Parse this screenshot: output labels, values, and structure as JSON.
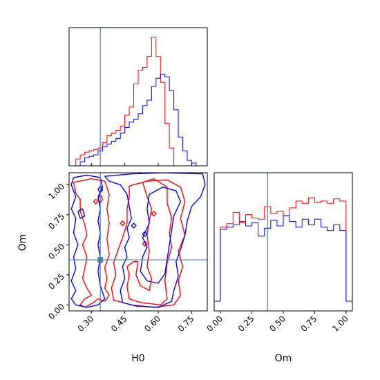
{
  "chart_data": {
    "type": "corner",
    "parameters": [
      "H0",
      "Om"
    ],
    "truth": {
      "H0": 0.34,
      "Om": 0.375
    },
    "truth_color": "#4682b4",
    "series": [
      {
        "color": "#ff0000"
      },
      {
        "color": "#0000ff"
      }
    ],
    "hist_H0": {
      "xlim": [
        0.2,
        0.82
      ],
      "edges": [
        0.23,
        0.25,
        0.27,
        0.29,
        0.31,
        0.33,
        0.35,
        0.37,
        0.39,
        0.41,
        0.43,
        0.45,
        0.47,
        0.49,
        0.51,
        0.53,
        0.55,
        0.57,
        0.59,
        0.61,
        0.63,
        0.65,
        0.67,
        0.69,
        0.71,
        0.73,
        0.75,
        0.77,
        0.79,
        0.81
      ],
      "red": [
        0.05,
        0.08,
        0.1,
        0.11,
        0.12,
        0.13,
        0.17,
        0.22,
        0.24,
        0.26,
        0.29,
        0.37,
        0.43,
        0.6,
        0.7,
        0.72,
        0.8,
        0.94,
        0.8,
        0.61,
        0.31,
        0.13,
        0.0,
        0.0,
        0.0,
        0.0,
        0.0,
        0.0,
        0.0
      ],
      "blue": [
        0.0,
        0.03,
        0.06,
        0.07,
        0.08,
        0.11,
        0.14,
        0.16,
        0.18,
        0.2,
        0.24,
        0.28,
        0.32,
        0.34,
        0.38,
        0.44,
        0.48,
        0.58,
        0.64,
        0.67,
        0.65,
        0.55,
        0.41,
        0.21,
        0.11,
        0.04,
        0.02,
        0.0,
        0.0
      ]
    },
    "hist_Om": {
      "xlim": [
        -0.05,
        1.05
      ],
      "edges": [
        0.0,
        0.05,
        0.1,
        0.15,
        0.2,
        0.25,
        0.3,
        0.35,
        0.4,
        0.45,
        0.5,
        0.55,
        0.6,
        0.65,
        0.7,
        0.75,
        0.8,
        0.85,
        0.9,
        0.95,
        1.0
      ],
      "red": [
        0.74,
        0.77,
        0.87,
        0.79,
        0.85,
        0.82,
        0.81,
        0.92,
        0.86,
        0.88,
        0.84,
        0.91,
        0.97,
        0.95,
        1.0,
        0.96,
        0.97,
        0.95,
        0.99,
        0.97
      ],
      "blue": [
        0.72,
        0.74,
        0.76,
        0.78,
        0.75,
        0.78,
        0.66,
        0.73,
        0.8,
        0.75,
        0.84,
        0.79,
        0.74,
        0.81,
        0.76,
        0.81,
        0.74,
        0.71,
        0.76,
        0.71
      ]
    },
    "scatter": {
      "xlim": [
        0.2,
        0.82
      ],
      "ylim": [
        -0.05,
        1.1
      ],
      "contours": [
        {
          "color": "red",
          "points": [
            [
              0.22,
              1.02
            ],
            [
              0.23,
              0.93
            ],
            [
              0.25,
              0.88
            ],
            [
              0.25,
              0.78
            ],
            [
              0.27,
              0.67
            ],
            [
              0.28,
              0.58
            ],
            [
              0.26,
              0.5
            ],
            [
              0.28,
              0.4
            ],
            [
              0.27,
              0.3
            ],
            [
              0.26,
              0.22
            ],
            [
              0.28,
              0.14
            ],
            [
              0.3,
              0.08
            ],
            [
              0.27,
              0.05
            ],
            [
              0.25,
              0.0
            ],
            [
              0.27,
              -0.02
            ],
            [
              0.31,
              0.02
            ],
            [
              0.33,
              0.05
            ],
            [
              0.36,
              0.03
            ],
            [
              0.38,
              0.08
            ],
            [
              0.36,
              0.14
            ],
            [
              0.37,
              0.22
            ],
            [
              0.36,
              0.31
            ],
            [
              0.38,
              0.42
            ],
            [
              0.37,
              0.55
            ],
            [
              0.38,
              0.68
            ],
            [
              0.37,
              0.8
            ],
            [
              0.38,
              0.92
            ],
            [
              0.36,
              1.03
            ],
            [
              0.3,
              1.05
            ],
            [
              0.22,
              1.02
            ]
          ]
        },
        {
          "color": "red",
          "points": [
            [
              0.32,
              0.88
            ],
            [
              0.33,
              0.86
            ],
            [
              0.32,
              0.84
            ],
            [
              0.31,
              0.86
            ],
            [
              0.32,
              0.88
            ]
          ]
        },
        {
          "color": "red",
          "points": [
            [
              0.34,
              0.92
            ],
            [
              0.35,
              0.88
            ],
            [
              0.34,
              0.85
            ],
            [
              0.33,
              0.88
            ],
            [
              0.34,
              0.92
            ]
          ]
        },
        {
          "color": "red",
          "points": [
            [
              0.44,
              0.7
            ],
            [
              0.45,
              0.68
            ],
            [
              0.44,
              0.66
            ],
            [
              0.43,
              0.68
            ],
            [
              0.44,
              0.7
            ]
          ]
        },
        {
          "color": "red",
          "points": [
            [
              0.51,
              0.36
            ],
            [
              0.5,
              0.25
            ],
            [
              0.52,
              0.16
            ],
            [
              0.56,
              0.12
            ],
            [
              0.57,
              0.22
            ],
            [
              0.55,
              0.32
            ],
            [
              0.56,
              0.45
            ],
            [
              0.55,
              0.58
            ],
            [
              0.56,
              0.7
            ],
            [
              0.57,
              0.8
            ],
            [
              0.55,
              0.9
            ],
            [
              0.53,
              1.02
            ],
            [
              0.58,
              1.05
            ],
            [
              0.64,
              0.98
            ],
            [
              0.64,
              0.85
            ],
            [
              0.66,
              0.72
            ],
            [
              0.65,
              0.6
            ],
            [
              0.66,
              0.48
            ],
            [
              0.64,
              0.35
            ],
            [
              0.63,
              0.2
            ],
            [
              0.64,
              0.05
            ],
            [
              0.61,
              0.0
            ],
            [
              0.52,
              0.02
            ],
            [
              0.47,
              0.05
            ],
            [
              0.46,
              0.15
            ],
            [
              0.47,
              0.25
            ],
            [
              0.46,
              0.32
            ],
            [
              0.49,
              0.36
            ],
            [
              0.51,
              0.36
            ]
          ]
        },
        {
          "color": "red",
          "points": [
            [
              0.47,
              0.99
            ],
            [
              0.55,
              1.03
            ],
            [
              0.64,
              1.04
            ],
            [
              0.7,
              0.98
            ],
            [
              0.72,
              0.86
            ],
            [
              0.7,
              0.72
            ],
            [
              0.72,
              0.58
            ],
            [
              0.69,
              0.45
            ],
            [
              0.71,
              0.32
            ],
            [
              0.69,
              0.2
            ],
            [
              0.7,
              0.08
            ],
            [
              0.67,
              0.0
            ],
            [
              0.58,
              -0.02
            ],
            [
              0.48,
              0.0
            ],
            [
              0.4,
              0.04
            ],
            [
              0.39,
              0.14
            ],
            [
              0.41,
              0.25
            ],
            [
              0.4,
              0.35
            ],
            [
              0.42,
              0.46
            ],
            [
              0.44,
              0.56
            ],
            [
              0.46,
              0.68
            ],
            [
              0.46,
              0.8
            ],
            [
              0.47,
              0.9
            ],
            [
              0.47,
              0.99
            ]
          ]
        },
        {
          "color": "red",
          "points": [
            [
              0.54,
              0.53
            ],
            [
              0.55,
              0.51
            ],
            [
              0.54,
              0.49
            ],
            [
              0.53,
              0.51
            ],
            [
              0.54,
              0.53
            ]
          ]
        },
        {
          "color": "red",
          "points": [
            [
              0.58,
              0.78
            ],
            [
              0.59,
              0.76
            ],
            [
              0.58,
              0.74
            ],
            [
              0.57,
              0.76
            ],
            [
              0.58,
              0.78
            ]
          ]
        },
        {
          "color": "blue",
          "points": [
            [
              0.22,
              1.06
            ],
            [
              0.28,
              1.08
            ],
            [
              0.34,
              1.06
            ],
            [
              0.35,
              0.98
            ],
            [
              0.33,
              0.9
            ],
            [
              0.34,
              0.8
            ],
            [
              0.33,
              0.7
            ],
            [
              0.34,
              0.6
            ],
            [
              0.33,
              0.5
            ],
            [
              0.34,
              0.4
            ],
            [
              0.33,
              0.28
            ],
            [
              0.34,
              0.16
            ],
            [
              0.36,
              0.05
            ],
            [
              0.33,
              0.0
            ],
            [
              0.28,
              -0.02
            ],
            [
              0.23,
              0.0
            ],
            [
              0.21,
              0.05
            ],
            [
              0.23,
              0.12
            ],
            [
              0.21,
              0.2
            ],
            [
              0.23,
              0.3
            ],
            [
              0.22,
              0.4
            ],
            [
              0.24,
              0.5
            ],
            [
              0.22,
              0.6
            ],
            [
              0.23,
              0.72
            ],
            [
              0.21,
              0.8
            ],
            [
              0.23,
              0.9
            ],
            [
              0.21,
              1.0
            ],
            [
              0.22,
              1.06
            ]
          ]
        },
        {
          "color": "blue",
          "points": [
            [
              0.24,
              0.78
            ],
            [
              0.25,
              0.72
            ],
            [
              0.27,
              0.74
            ],
            [
              0.26,
              0.8
            ],
            [
              0.24,
              0.78
            ]
          ]
        },
        {
          "color": "blue",
          "points": [
            [
              0.34,
              0.99
            ],
            [
              0.35,
              0.96
            ],
            [
              0.34,
              0.93
            ],
            [
              0.33,
              0.96
            ],
            [
              0.34,
              0.99
            ]
          ]
        },
        {
          "color": "blue",
          "points": [
            [
              0.49,
              0.68
            ],
            [
              0.5,
              0.66
            ],
            [
              0.49,
              0.64
            ],
            [
              0.48,
              0.66
            ],
            [
              0.49,
              0.68
            ]
          ]
        },
        {
          "color": "blue",
          "points": [
            [
              0.54,
              0.61
            ],
            [
              0.55,
              0.59
            ],
            [
              0.54,
              0.57
            ],
            [
              0.53,
              0.59
            ],
            [
              0.54,
              0.61
            ]
          ]
        },
        {
          "color": "blue",
          "points": [
            [
              0.36,
              1.07
            ],
            [
              0.48,
              1.09
            ],
            [
              0.62,
              1.1
            ],
            [
              0.8,
              1.09
            ],
            [
              0.81,
              1.0
            ],
            [
              0.79,
              0.9
            ],
            [
              0.75,
              0.82
            ],
            [
              0.73,
              0.7
            ],
            [
              0.72,
              0.58
            ],
            [
              0.7,
              0.46
            ],
            [
              0.68,
              0.36
            ],
            [
              0.69,
              0.24
            ],
            [
              0.67,
              0.12
            ],
            [
              0.66,
              0.03
            ],
            [
              0.6,
              -0.02
            ],
            [
              0.5,
              -0.01
            ],
            [
              0.44,
              0.02
            ],
            [
              0.43,
              0.12
            ],
            [
              0.45,
              0.22
            ],
            [
              0.44,
              0.32
            ],
            [
              0.46,
              0.4
            ],
            [
              0.45,
              0.48
            ],
            [
              0.47,
              0.56
            ],
            [
              0.46,
              0.64
            ],
            [
              0.48,
              0.72
            ],
            [
              0.47,
              0.82
            ],
            [
              0.46,
              0.92
            ],
            [
              0.43,
              1.0
            ],
            [
              0.38,
              1.03
            ],
            [
              0.36,
              1.07
            ]
          ]
        },
        {
          "color": "blue",
          "points": [
            [
              0.52,
              0.28
            ],
            [
              0.53,
              0.4
            ],
            [
              0.55,
              0.48
            ],
            [
              0.53,
              0.56
            ],
            [
              0.56,
              0.68
            ],
            [
              0.55,
              0.8
            ],
            [
              0.56,
              0.92
            ],
            [
              0.62,
              0.98
            ],
            [
              0.68,
              0.95
            ],
            [
              0.7,
              0.86
            ],
            [
              0.67,
              0.74
            ],
            [
              0.66,
              0.62
            ],
            [
              0.65,
              0.5
            ],
            [
              0.64,
              0.38
            ],
            [
              0.63,
              0.26
            ],
            [
              0.6,
              0.18
            ],
            [
              0.55,
              0.2
            ],
            [
              0.52,
              0.28
            ]
          ]
        }
      ]
    },
    "xlabel_H0": "H0",
    "xlabel_Om": "Om",
    "ylabel_Om": "Om",
    "ticks_H0": [
      "0.30",
      "0.45",
      "0.60",
      "0.75"
    ],
    "ticks_H0_values": [
      0.3,
      0.45,
      0.6,
      0.75
    ],
    "ticks_Om": [
      "0.00",
      "0.25",
      "0.50",
      "0.75",
      "1.00"
    ],
    "ticks_Om_values": [
      0.0,
      0.25,
      0.5,
      0.75,
      1.0
    ]
  }
}
